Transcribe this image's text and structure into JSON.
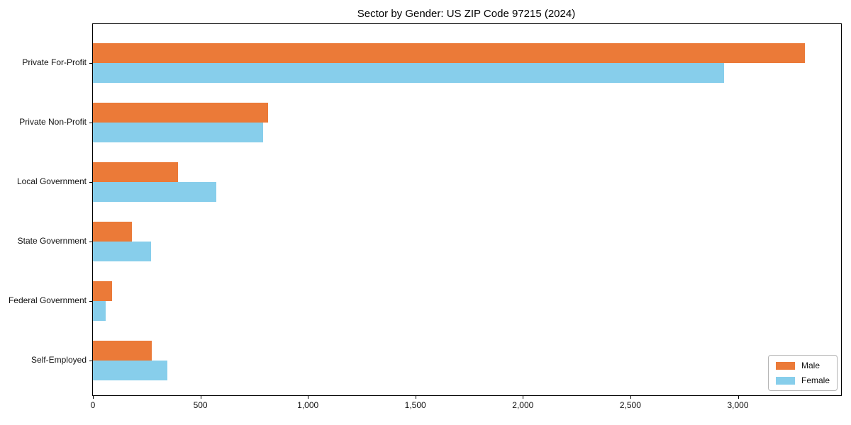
{
  "chart_data": {
    "type": "bar",
    "orientation": "horizontal",
    "title": "Sector by Gender: US ZIP Code 97215 (2024)",
    "categories": [
      "Private For-Profit",
      "Private Non-Profit",
      "Local Government",
      "State Government",
      "Federal Government",
      "Self-Employed"
    ],
    "series": [
      {
        "name": "Male",
        "color": "#EB7A38",
        "values": [
          3310,
          815,
          395,
          180,
          90,
          275
        ]
      },
      {
        "name": "Female",
        "color": "#87CEEB",
        "values": [
          2935,
          790,
          575,
          270,
          60,
          345
        ]
      }
    ],
    "xlabel": "",
    "ylabel": "",
    "xlim": [
      0,
      3480
    ],
    "xticks": [
      0,
      500,
      1000,
      1500,
      2000,
      2500,
      3000
    ],
    "xtick_labels": [
      "0",
      "500",
      "1,000",
      "1,500",
      "2,000",
      "2,500",
      "3,000"
    ],
    "grid": false,
    "legend_position": "lower right",
    "background_color": "#ffffff",
    "spine_color": "#000000"
  }
}
